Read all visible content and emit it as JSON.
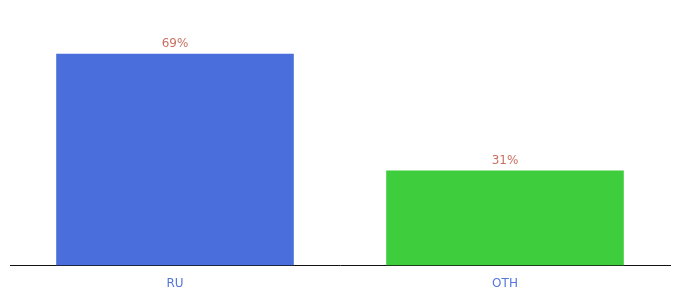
{
  "chart_data": {
    "type": "bar",
    "categories": [
      "RU",
      "OTH"
    ],
    "values": [
      69,
      31
    ],
    "value_labels": [
      "69%",
      "31%"
    ],
    "colors": [
      "#4a6edb",
      "#3dcd3d"
    ],
    "data_labels": true,
    "ylim": [
      0,
      80
    ],
    "grid": false,
    "tick_labels": "x"
  }
}
